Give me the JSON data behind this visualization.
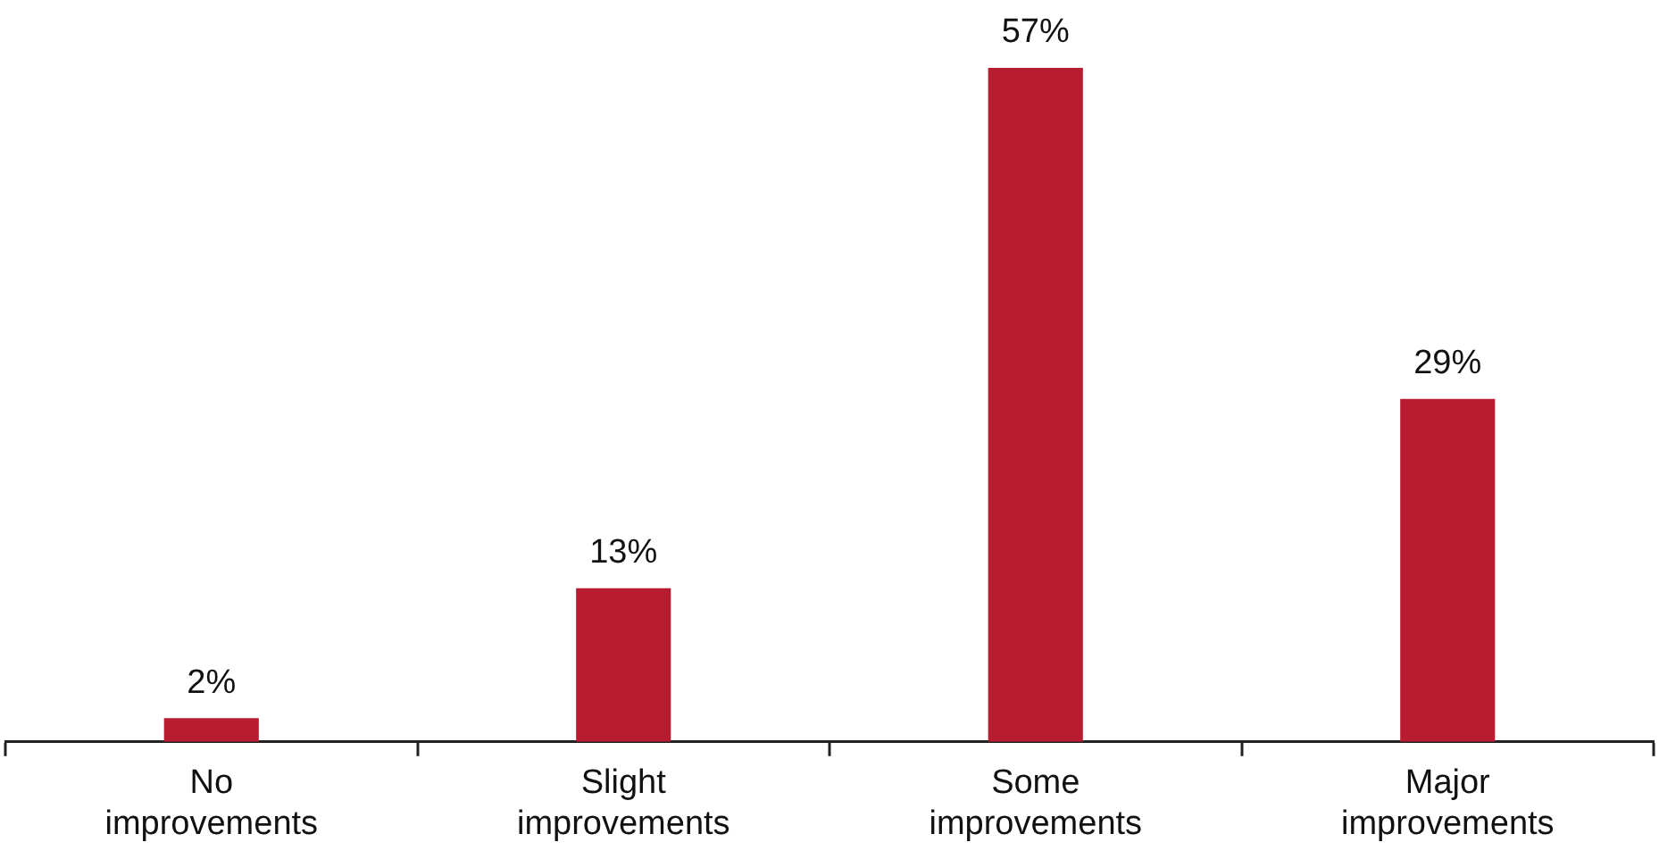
{
  "chart_data": {
    "type": "bar",
    "categories": [
      "No improvements",
      "Slight improvements",
      "Some improvements",
      "Major improvements"
    ],
    "values": [
      2,
      13,
      57,
      29
    ],
    "color": "#b81c31",
    "value_labels": [
      "2%",
      "13%",
      "57%",
      "29%"
    ],
    "grid": false,
    "legend": false
  }
}
